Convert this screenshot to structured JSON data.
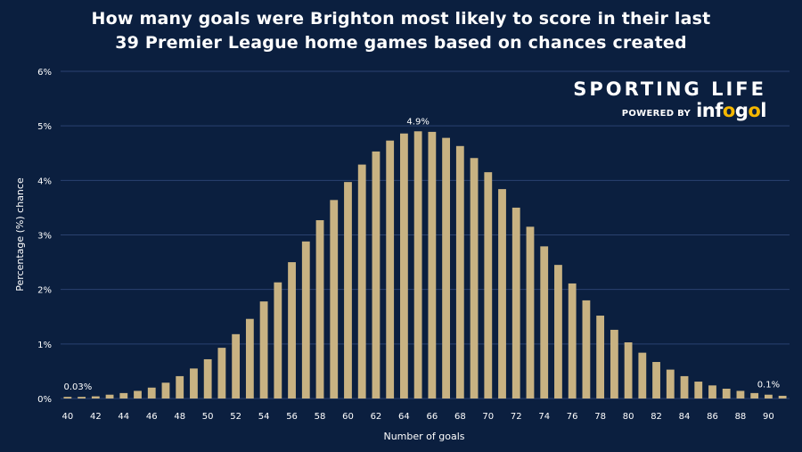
{
  "brand": {
    "name": "SPORTING LIFE",
    "powered_by": "POWERED BY",
    "partner_parts": [
      "inf",
      "o",
      "g",
      "o",
      "l"
    ]
  },
  "chart_data": {
    "type": "bar",
    "title_lines": [
      "How many goals were Brighton most likely to score in their last",
      "39 Premier League home games based on chances created"
    ],
    "xlabel": "Number of goals",
    "ylabel": "Percentage (%) chance",
    "ylim": [
      0,
      6
    ],
    "y_ticks": [
      0,
      1,
      2,
      3,
      4,
      5,
      6
    ],
    "y_tick_labels": [
      "0%",
      "1%",
      "2%",
      "3%",
      "4%",
      "5%",
      "6%"
    ],
    "x_ticks": [
      40,
      42,
      44,
      46,
      48,
      50,
      52,
      54,
      56,
      58,
      60,
      62,
      64,
      66,
      68,
      70,
      72,
      74,
      76,
      78,
      80,
      82,
      84,
      86,
      88,
      90
    ],
    "grid": true,
    "bar_color": "#c8b282",
    "grid_color": "#2b4270",
    "categories": [
      40,
      41,
      42,
      43,
      44,
      45,
      46,
      47,
      48,
      49,
      50,
      51,
      52,
      53,
      54,
      55,
      56,
      57,
      58,
      59,
      60,
      61,
      62,
      63,
      64,
      65,
      66,
      67,
      68,
      69,
      70,
      71,
      72,
      73,
      74,
      75,
      76,
      77,
      78,
      79,
      80,
      81,
      82,
      83,
      84,
      85,
      86,
      87,
      88,
      89,
      90,
      91
    ],
    "values": [
      0.03,
      0.03,
      0.04,
      0.07,
      0.1,
      0.14,
      0.2,
      0.29,
      0.41,
      0.55,
      0.72,
      0.93,
      1.18,
      1.46,
      1.78,
      2.13,
      2.5,
      2.88,
      3.27,
      3.64,
      3.97,
      4.29,
      4.53,
      4.73,
      4.86,
      4.9,
      4.89,
      4.78,
      4.63,
      4.41,
      4.15,
      3.84,
      3.5,
      3.15,
      2.79,
      2.45,
      2.11,
      1.8,
      1.52,
      1.26,
      1.03,
      0.84,
      0.67,
      0.53,
      0.41,
      0.31,
      0.24,
      0.18,
      0.14,
      0.1,
      0.07,
      0.05
    ],
    "annotations": [
      {
        "label": "0.03%",
        "category": 40
      },
      {
        "label": "4.9%",
        "category": 65
      },
      {
        "label": "0.1%",
        "category": 90
      }
    ]
  }
}
